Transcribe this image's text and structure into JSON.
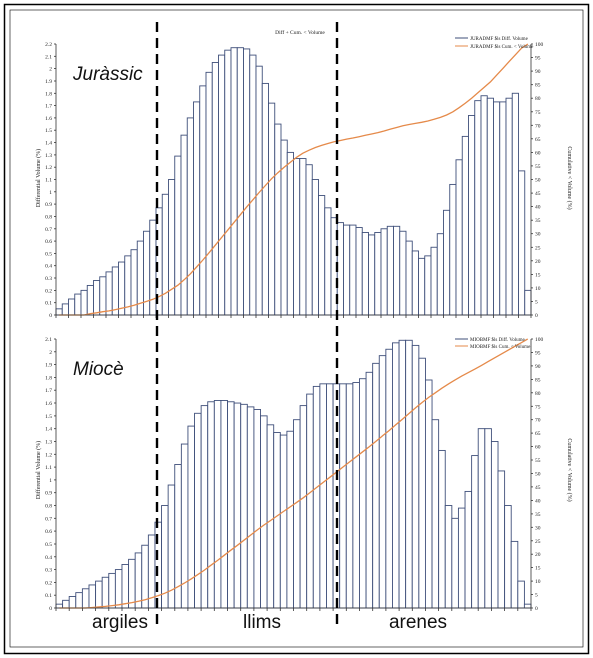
{
  "chart_data": [
    {
      "type": "bar",
      "panel_label": "Juràssic",
      "title": "Diff + Cum. < Volume",
      "ylabel": "Differential Volume (%)",
      "y2label": "Cumulative < Volume (%)",
      "ylim": [
        0,
        2.2
      ],
      "y2lim": [
        0,
        100
      ],
      "grid": false,
      "legend_position": "top-right",
      "legend": [
        "JURADMF $ls Diff. Volume",
        "JURADMF $ls Cum. < Volume"
      ],
      "series": [
        {
          "name": "JURADMF $ls Diff. Volume",
          "values": [
            0.05,
            0.09,
            0.13,
            0.17,
            0.2,
            0.24,
            0.28,
            0.31,
            0.35,
            0.39,
            0.43,
            0.48,
            0.53,
            0.6,
            0.68,
            0.77,
            0.87,
            0.98,
            1.1,
            1.29,
            1.46,
            1.6,
            1.73,
            1.86,
            1.97,
            2.05,
            2.11,
            2.15,
            2.17,
            2.17,
            2.16,
            2.11,
            2.02,
            1.88,
            1.72,
            1.55,
            1.42,
            1.32,
            1.27,
            1.27,
            1.22,
            1.1,
            0.97,
            0.87,
            0.79,
            0.75,
            0.73,
            0.73,
            0.71,
            0.67,
            0.65,
            0.67,
            0.7,
            0.72,
            0.72,
            0.68,
            0.6,
            0.52,
            0.46,
            0.48,
            0.55,
            0.66,
            0.85,
            1.06,
            1.26,
            1.45,
            1.62,
            1.74,
            1.78,
            1.76,
            1.73,
            1.73,
            1.76,
            1.8,
            1.17,
            0.2
          ]
        },
        {
          "name": "JURADMF $ls Cum. < Volume",
          "values": [
            0,
            0,
            0,
            0,
            0,
            0.5,
            0.8,
            1.2,
            1.5,
            2,
            2.5,
            3,
            3.6,
            4.3,
            5,
            5.8,
            6.8,
            8,
            9.5,
            11,
            13,
            15.2,
            17.7,
            20.3,
            23,
            25.8,
            28.6,
            31.4,
            34.2,
            37,
            39.8,
            42.5,
            45.2,
            47.8,
            50.3,
            52.5,
            54.5,
            56.4,
            58.2,
            59.7,
            60.8,
            61.8,
            62.6,
            63.3,
            63.9,
            64.4,
            64.9,
            65.3,
            65.8,
            66.3,
            66.8,
            67.3,
            67.9,
            68.6,
            69.2,
            69.8,
            70.3,
            70.7,
            71.1,
            71.6,
            72.2,
            72.9,
            73.8,
            75,
            76.5,
            78.2,
            80,
            82,
            84,
            86,
            88.5,
            91,
            93.5,
            96,
            98.5,
            100
          ]
        }
      ]
    },
    {
      "type": "bar",
      "panel_label": "Miocè",
      "ylabel": "Differential Volume (%)",
      "y2label": "Cumulative < Volume (%)",
      "ylim": [
        0,
        2.1
      ],
      "y2lim": [
        0,
        100
      ],
      "grid": false,
      "legend_position": "top-right",
      "legend": [
        "MIOBMF $ls Diff. Volume",
        "MIOBMF $ls Cum. < Volume"
      ],
      "series": [
        {
          "name": "MIOBMF $ls Diff. Volume",
          "values": [
            0.03,
            0.06,
            0.09,
            0.12,
            0.15,
            0.18,
            0.21,
            0.24,
            0.27,
            0.3,
            0.34,
            0.38,
            0.43,
            0.49,
            0.57,
            0.67,
            0.8,
            0.96,
            1.12,
            1.28,
            1.42,
            1.52,
            1.58,
            1.61,
            1.62,
            1.62,
            1.61,
            1.6,
            1.59,
            1.57,
            1.55,
            1.5,
            1.43,
            1.37,
            1.35,
            1.38,
            1.47,
            1.58,
            1.67,
            1.73,
            1.75,
            1.75,
            1.75,
            1.75,
            1.75,
            1.76,
            1.79,
            1.84,
            1.91,
            1.97,
            2.02,
            2.07,
            2.09,
            2.09,
            2.05,
            1.95,
            1.78,
            1.47,
            1.23,
            0.8,
            0.7,
            0.78,
            0.91,
            1.19,
            1.4,
            1.4,
            1.3,
            1.07,
            0.8,
            0.52,
            0.21,
            0.03
          ]
        },
        {
          "name": "MIOBMF $ls Cum. < Volume",
          "values": [
            0,
            0,
            0,
            0,
            0,
            0.2,
            0.4,
            0.6,
            0.9,
            1.2,
            1.6,
            2,
            2.5,
            3.1,
            3.8,
            4.6,
            5.5,
            6.6,
            7.9,
            9.3,
            10.8,
            12.4,
            14.1,
            15.9,
            17.7,
            19.6,
            21.5,
            23.3,
            25.2,
            27.1,
            29,
            30.8,
            32.5,
            34.2,
            35.9,
            37.6,
            39.3,
            41,
            42.9,
            44.8,
            46.7,
            48.6,
            50.5,
            52.4,
            54.3,
            56.2,
            58.1,
            60,
            62,
            64,
            66,
            68.1,
            70.2,
            72.3,
            74.4,
            76.4,
            78.3,
            80,
            81.7,
            83.3,
            84.8,
            86.2,
            87.5,
            88.8,
            90.2,
            91.6,
            93,
            94.4,
            95.8,
            97.2,
            98.6,
            100
          ]
        }
      ]
    }
  ],
  "classes": [
    "argiles",
    "llims",
    "arenes"
  ],
  "colors": {
    "bar_stroke": "#3f4f7a",
    "cumulative": "#e58a4a",
    "divider": "#000000"
  }
}
